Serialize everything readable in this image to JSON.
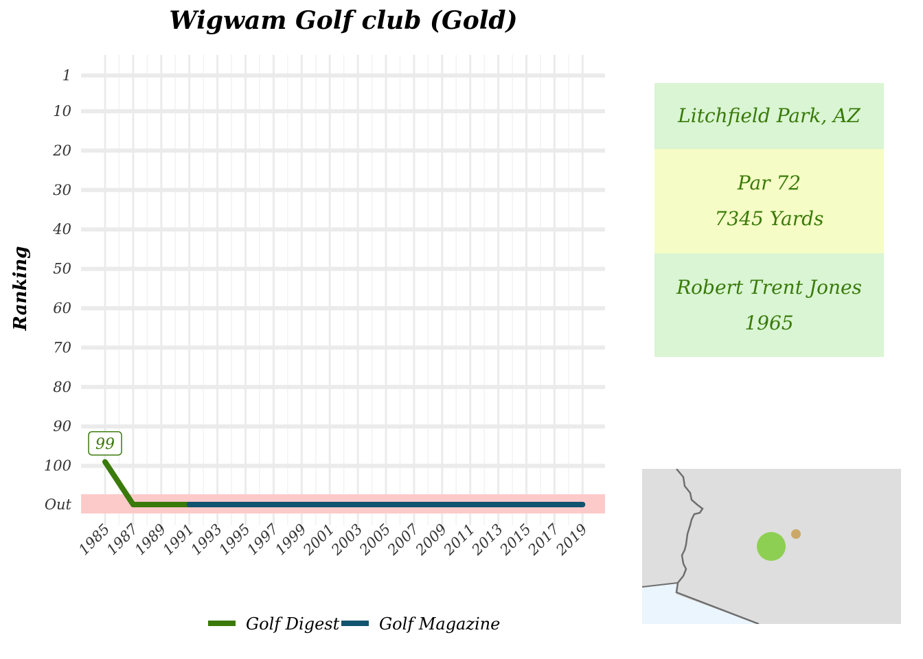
{
  "chart_data": {
    "type": "line",
    "title": "Wigwam Golf club (Gold)",
    "ylabel": "Ranking",
    "xlabel": "",
    "x_ticks": [
      "1985",
      "1987",
      "1989",
      "1991",
      "1993",
      "1995",
      "1997",
      "1999",
      "2001",
      "2003",
      "2005",
      "2007",
      "2009",
      "2011",
      "2013",
      "2015",
      "2017",
      "2019"
    ],
    "y_ticks": [
      "1",
      "10",
      "20",
      "30",
      "40",
      "50",
      "60",
      "70",
      "80",
      "90",
      "100",
      "Out"
    ],
    "out_label": "Out",
    "series": [
      {
        "name": "Golf Digest",
        "color": "#3a7a0a",
        "points": [
          [
            1985,
            99
          ],
          [
            1987,
            "Out"
          ],
          [
            1991,
            "Out"
          ]
        ]
      },
      {
        "name": "Golf Magazine",
        "color": "#10546f",
        "points": [
          [
            1991,
            "Out"
          ],
          [
            2019,
            "Out"
          ]
        ]
      }
    ],
    "annotations": [
      {
        "x": 1985,
        "y": 99,
        "label": "99"
      }
    ],
    "legend_position": "bottom",
    "grid": true
  },
  "info": {
    "location": "Litchfield Park, AZ",
    "par": "Par 72",
    "yards": "7345 Yards",
    "architect": "Robert Trent Jones",
    "year": "1965",
    "colors": {
      "green_bg": "#d9f5d3",
      "yellow_bg": "#f5fcc5",
      "text": "#3a7a0a"
    }
  },
  "map": {
    "land_color": "#dedede",
    "water_color": "#ebf5fd",
    "border_color": "#6e6e6e",
    "markers": [
      {
        "name": "course",
        "color": "#7fcc3a"
      },
      {
        "name": "city",
        "color": "#c79a4a"
      }
    ]
  }
}
